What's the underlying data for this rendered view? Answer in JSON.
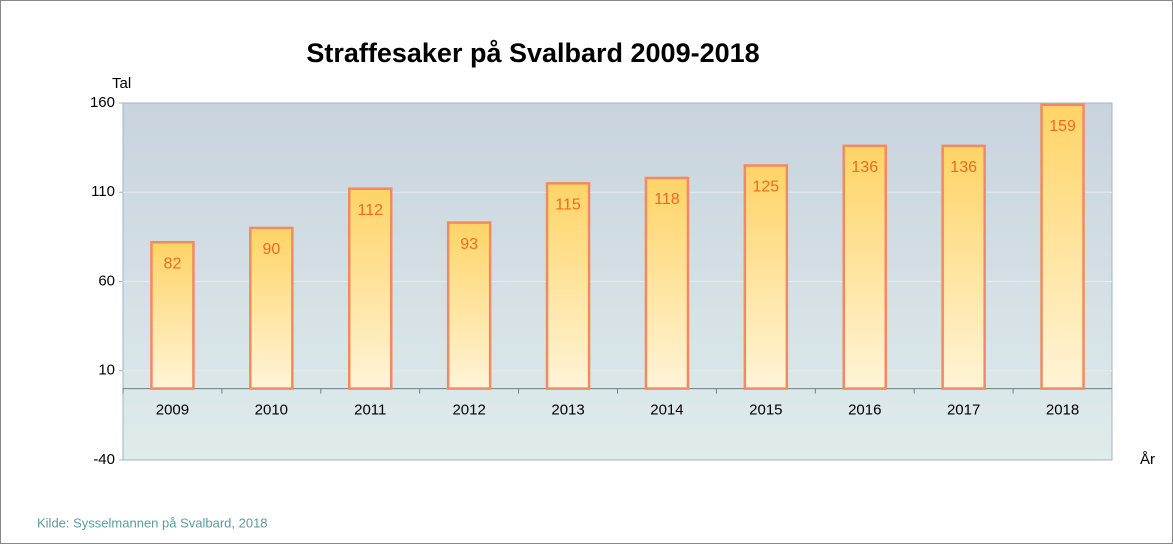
{
  "chart_data": {
    "type": "bar",
    "title": "Straffesaker på Svalbard 2009-2018",
    "y_axis_label": "Tal",
    "x_axis_label": "År",
    "source": "Kilde: Sysselmannen på Svalbard, 2018",
    "categories": [
      "2009",
      "2010",
      "2011",
      "2012",
      "2013",
      "2014",
      "2015",
      "2016",
      "2017",
      "2018"
    ],
    "values": [
      82,
      90,
      112,
      93,
      115,
      118,
      125,
      136,
      136,
      159
    ],
    "color": "#ffd466",
    "ylim": [
      -40,
      160
    ],
    "yticks": [
      -40,
      10,
      60,
      110,
      160
    ],
    "grid": true
  }
}
